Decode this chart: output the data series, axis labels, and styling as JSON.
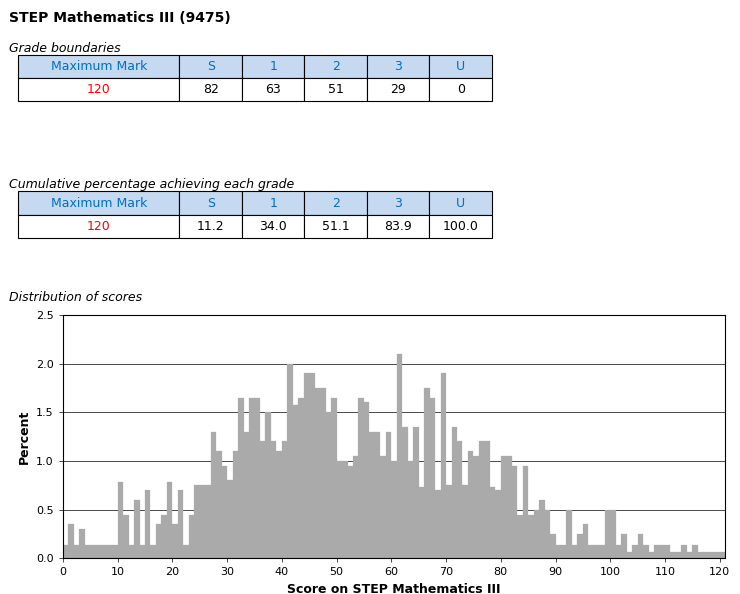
{
  "title": "STEP Mathematics III (9475)",
  "grade_boundaries_label": "Grade boundaries",
  "cumulative_label": "Cumulative percentage achieving each grade",
  "distribution_label": "Distribution of scores",
  "table1_headers": [
    "Maximum Mark",
    "S",
    "1",
    "2",
    "3",
    "U"
  ],
  "table1_row": [
    "120",
    "82",
    "63",
    "51",
    "29",
    "0"
  ],
  "table2_headers": [
    "Maximum Mark",
    "S",
    "1",
    "2",
    "3",
    "U"
  ],
  "table2_row": [
    "120",
    "11.2",
    "34.0",
    "51.1",
    "83.9",
    "100.0"
  ],
  "header_text_color": "#0070C0",
  "header_bg_color": "#C5D9F1",
  "data_row1_col0_color": "#FF0000",
  "data_row2_col0_color": "#FF0000",
  "xlabel": "Score on STEP Mathematics III",
  "ylabel": "Percent",
  "ylim": [
    0,
    2.5
  ],
  "yticks": [
    0.0,
    0.5,
    1.0,
    1.5,
    2.0,
    2.5
  ],
  "xticks": [
    0,
    10,
    20,
    30,
    40,
    50,
    60,
    70,
    80,
    90,
    100,
    110,
    120
  ],
  "bar_color": "#AAAAAA",
  "hist_values": [
    0.14,
    0.35,
    0.14,
    0.3,
    0.14,
    0.14,
    0.14,
    0.14,
    0.14,
    0.14,
    0.78,
    0.45,
    0.14,
    0.6,
    0.14,
    0.7,
    0.14,
    0.35,
    0.45,
    0.78,
    0.35,
    0.7,
    0.14,
    0.45,
    0.75,
    0.75,
    0.75,
    1.3,
    1.1,
    0.95,
    0.8,
    1.1,
    1.65,
    1.3,
    1.65,
    1.65,
    1.2,
    1.5,
    1.2,
    1.1,
    1.2,
    2.0,
    1.57,
    1.65,
    1.9,
    1.9,
    1.75,
    1.75,
    1.5,
    1.65,
    1.0,
    1.0,
    0.95,
    1.05,
    1.65,
    1.6,
    1.3,
    1.3,
    1.05,
    1.3,
    1.0,
    2.1,
    1.35,
    1.0,
    1.35,
    0.73,
    1.75,
    1.65,
    0.7,
    1.9,
    0.75,
    1.35,
    1.2,
    0.75,
    1.1,
    1.05,
    1.2,
    1.2,
    0.73,
    0.7,
    1.05,
    1.05,
    0.95,
    0.45,
    0.95,
    0.45,
    0.5,
    0.6,
    0.5,
    0.25,
    0.14,
    0.14,
    0.5,
    0.14,
    0.25,
    0.35,
    0.14,
    0.14,
    0.14,
    0.5,
    0.5,
    0.14,
    0.25,
    0.07,
    0.14,
    0.25,
    0.14,
    0.07,
    0.14,
    0.14,
    0.14,
    0.07,
    0.07,
    0.14,
    0.07,
    0.14,
    0.07,
    0.07,
    0.07,
    0.07,
    0.07
  ]
}
